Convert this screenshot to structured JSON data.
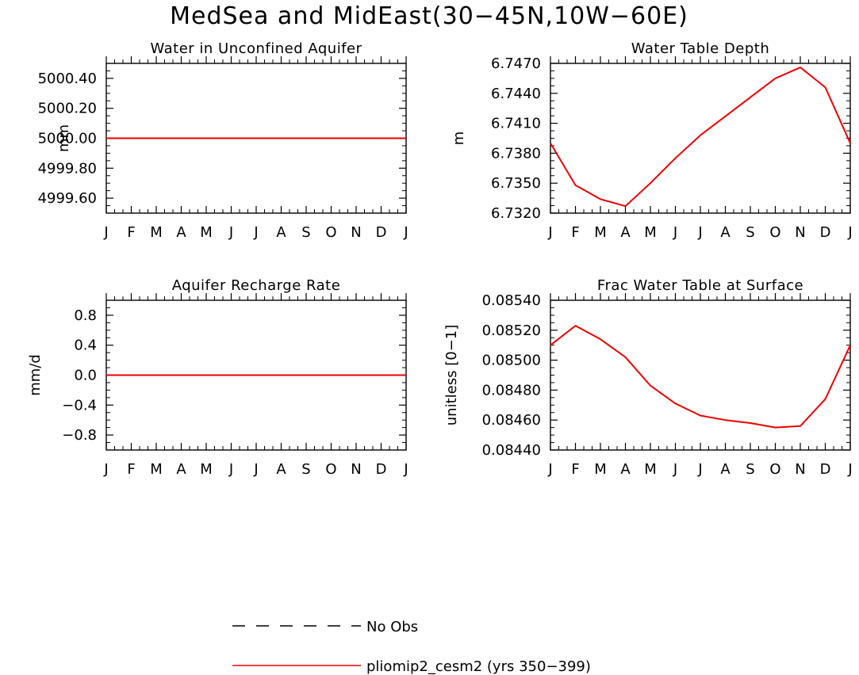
{
  "figure_title": "MedSea and MidEast(30−45N,10W−60E)",
  "colors": {
    "series": "#ee0000",
    "obs": "#000000",
    "axis": "#000000"
  },
  "legend": {
    "obs_label": "No Obs",
    "model_label": "pliomip2_cesm2 (yrs 350−399)"
  },
  "chart_data": [
    {
      "type": "line",
      "title": "Water in Unconfined Aquifer",
      "xlabel": "",
      "ylabel": "mm",
      "categories": [
        "J",
        "F",
        "M",
        "A",
        "M",
        "J",
        "J",
        "A",
        "S",
        "O",
        "N",
        "D",
        "J"
      ],
      "ylim": [
        4999.5,
        5000.5
      ],
      "yticks": [
        4999.6,
        4999.8,
        5000.0,
        5000.2,
        5000.4
      ],
      "ytick_labels": [
        "4999.60",
        "4999.80",
        "5000.00",
        "5000.20",
        "5000.40"
      ],
      "series": [
        {
          "name": "pliomip2_cesm2 (yrs 350−399)",
          "values": [
            5000.0,
            5000.0,
            5000.0,
            5000.0,
            5000.0,
            5000.0,
            5000.0,
            5000.0,
            5000.0,
            5000.0,
            5000.0,
            5000.0,
            5000.0
          ]
        }
      ]
    },
    {
      "type": "line",
      "title": "Water Table Depth",
      "xlabel": "",
      "ylabel": "m",
      "categories": [
        "J",
        "F",
        "M",
        "A",
        "M",
        "J",
        "J",
        "A",
        "S",
        "O",
        "N",
        "D",
        "J"
      ],
      "ylim": [
        6.732,
        6.747
      ],
      "yticks": [
        6.732,
        6.735,
        6.738,
        6.741,
        6.744,
        6.747
      ],
      "ytick_labels": [
        "6.7320",
        "6.7350",
        "6.7380",
        "6.7410",
        "6.7440",
        "6.7470"
      ],
      "series": [
        {
          "name": "pliomip2_cesm2 (yrs 350−399)",
          "values": [
            6.739,
            6.7348,
            6.7334,
            6.7327,
            6.735,
            6.7375,
            6.7398,
            6.7417,
            6.7436,
            6.7455,
            6.7466,
            6.7446,
            6.739
          ]
        }
      ]
    },
    {
      "type": "line",
      "title": "Aquifer Recharge Rate",
      "xlabel": "",
      "ylabel": "mm/d",
      "categories": [
        "J",
        "F",
        "M",
        "A",
        "M",
        "J",
        "J",
        "A",
        "S",
        "O",
        "N",
        "D",
        "J"
      ],
      "ylim": [
        -1.0,
        1.0
      ],
      "yticks": [
        -0.8,
        -0.4,
        0.0,
        0.4,
        0.8
      ],
      "ytick_labels": [
        "−0.8",
        "−0.4",
        "0.0",
        "0.4",
        "0.8"
      ],
      "series": [
        {
          "name": "pliomip2_cesm2 (yrs 350−399)",
          "values": [
            0,
            0,
            0,
            0,
            0,
            0,
            0,
            0,
            0,
            0,
            0,
            0,
            0
          ]
        }
      ]
    },
    {
      "type": "line",
      "title": "Frac Water Table at Surface",
      "xlabel": "",
      "ylabel": "unitless [0−1]",
      "categories": [
        "J",
        "F",
        "M",
        "A",
        "M",
        "J",
        "J",
        "A",
        "S",
        "O",
        "N",
        "D",
        "J"
      ],
      "ylim": [
        0.0844,
        0.0854
      ],
      "yticks": [
        0.0844,
        0.0846,
        0.0848,
        0.085,
        0.0852,
        0.0854
      ],
      "ytick_labels": [
        "0.08440",
        "0.08460",
        "0.08480",
        "0.08500",
        "0.08520",
        "0.08540"
      ],
      "series": [
        {
          "name": "pliomip2_cesm2 (yrs 350−399)",
          "values": [
            0.0851,
            0.08523,
            0.08514,
            0.08502,
            0.08483,
            0.08471,
            0.08463,
            0.0846,
            0.08458,
            0.08455,
            0.08456,
            0.08474,
            0.0851
          ]
        }
      ]
    }
  ]
}
